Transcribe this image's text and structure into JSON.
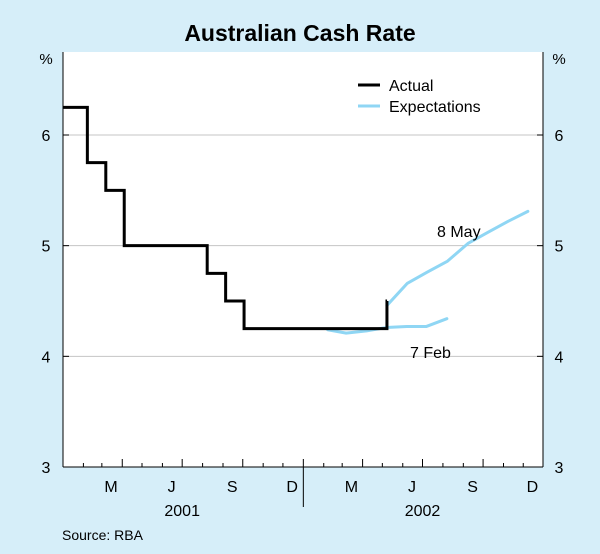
{
  "chart_data": {
    "type": "line",
    "title": "Australian Cash Rate",
    "ylabel_left": "%",
    "ylabel_right": "%",
    "ylim": [
      3,
      6.75
    ],
    "yticks": [
      3,
      4,
      5,
      6
    ],
    "x_range": [
      "2001-01-01",
      "2002-12-31"
    ],
    "x_tick_labels": [
      {
        "label": "M",
        "date": "2001-03-15"
      },
      {
        "label": "J",
        "date": "2001-06-15"
      },
      {
        "label": "S",
        "date": "2001-09-15"
      },
      {
        "label": "D",
        "date": "2001-12-15"
      },
      {
        "label": "M",
        "date": "2002-03-15"
      },
      {
        "label": "J",
        "date": "2002-06-15"
      },
      {
        "label": "S",
        "date": "2002-09-15"
      },
      {
        "label": "D",
        "date": "2002-12-15"
      }
    ],
    "year_labels": [
      {
        "label": "2001",
        "date": "2001-07-01"
      },
      {
        "label": "2002",
        "date": "2002-07-01"
      }
    ],
    "grid": true,
    "legend": {
      "position": "top-right",
      "entries": [
        {
          "name": "Actual",
          "color": "#000000"
        },
        {
          "name": "Expectations",
          "color": "#8fd6f4"
        }
      ]
    },
    "series": [
      {
        "name": "Actual",
        "style": "step",
        "color": "#000000",
        "points": [
          {
            "x": "2001-01-01",
            "y": 6.25
          },
          {
            "x": "2001-02-07",
            "y": 5.75
          },
          {
            "x": "2001-03-07",
            "y": 5.5
          },
          {
            "x": "2001-04-04",
            "y": 5.0
          },
          {
            "x": "2001-08-08",
            "y": 4.75
          },
          {
            "x": "2001-09-05",
            "y": 4.5
          },
          {
            "x": "2001-10-03",
            "y": 4.25
          },
          {
            "x": "2002-05-08",
            "y": 4.5
          }
        ]
      },
      {
        "name": "Expectations",
        "style": "line",
        "color": "#8fd6f4",
        "annotation": "8 May",
        "points": [
          {
            "x": "2002-05-08",
            "y": 4.46
          },
          {
            "x": "2002-06-08",
            "y": 4.66
          },
          {
            "x": "2002-07-08",
            "y": 4.76
          },
          {
            "x": "2002-08-08",
            "y": 4.86
          },
          {
            "x": "2002-09-08",
            "y": 5.02
          },
          {
            "x": "2002-10-08",
            "y": 5.12
          },
          {
            "x": "2002-11-08",
            "y": 5.22
          },
          {
            "x": "2002-12-08",
            "y": 5.31
          }
        ]
      },
      {
        "name": "Expectations",
        "style": "line",
        "color": "#8fd6f4",
        "annotation": "7 Feb",
        "points": [
          {
            "x": "2002-02-07",
            "y": 4.24
          },
          {
            "x": "2002-03-07",
            "y": 4.21
          },
          {
            "x": "2002-04-07",
            "y": 4.23
          },
          {
            "x": "2002-05-07",
            "y": 4.26
          },
          {
            "x": "2002-06-07",
            "y": 4.27
          },
          {
            "x": "2002-07-07",
            "y": 4.27
          },
          {
            "x": "2002-08-07",
            "y": 4.34
          }
        ]
      }
    ],
    "annotations": [
      "8 May",
      "7 Feb"
    ],
    "source": "Source: RBA"
  }
}
